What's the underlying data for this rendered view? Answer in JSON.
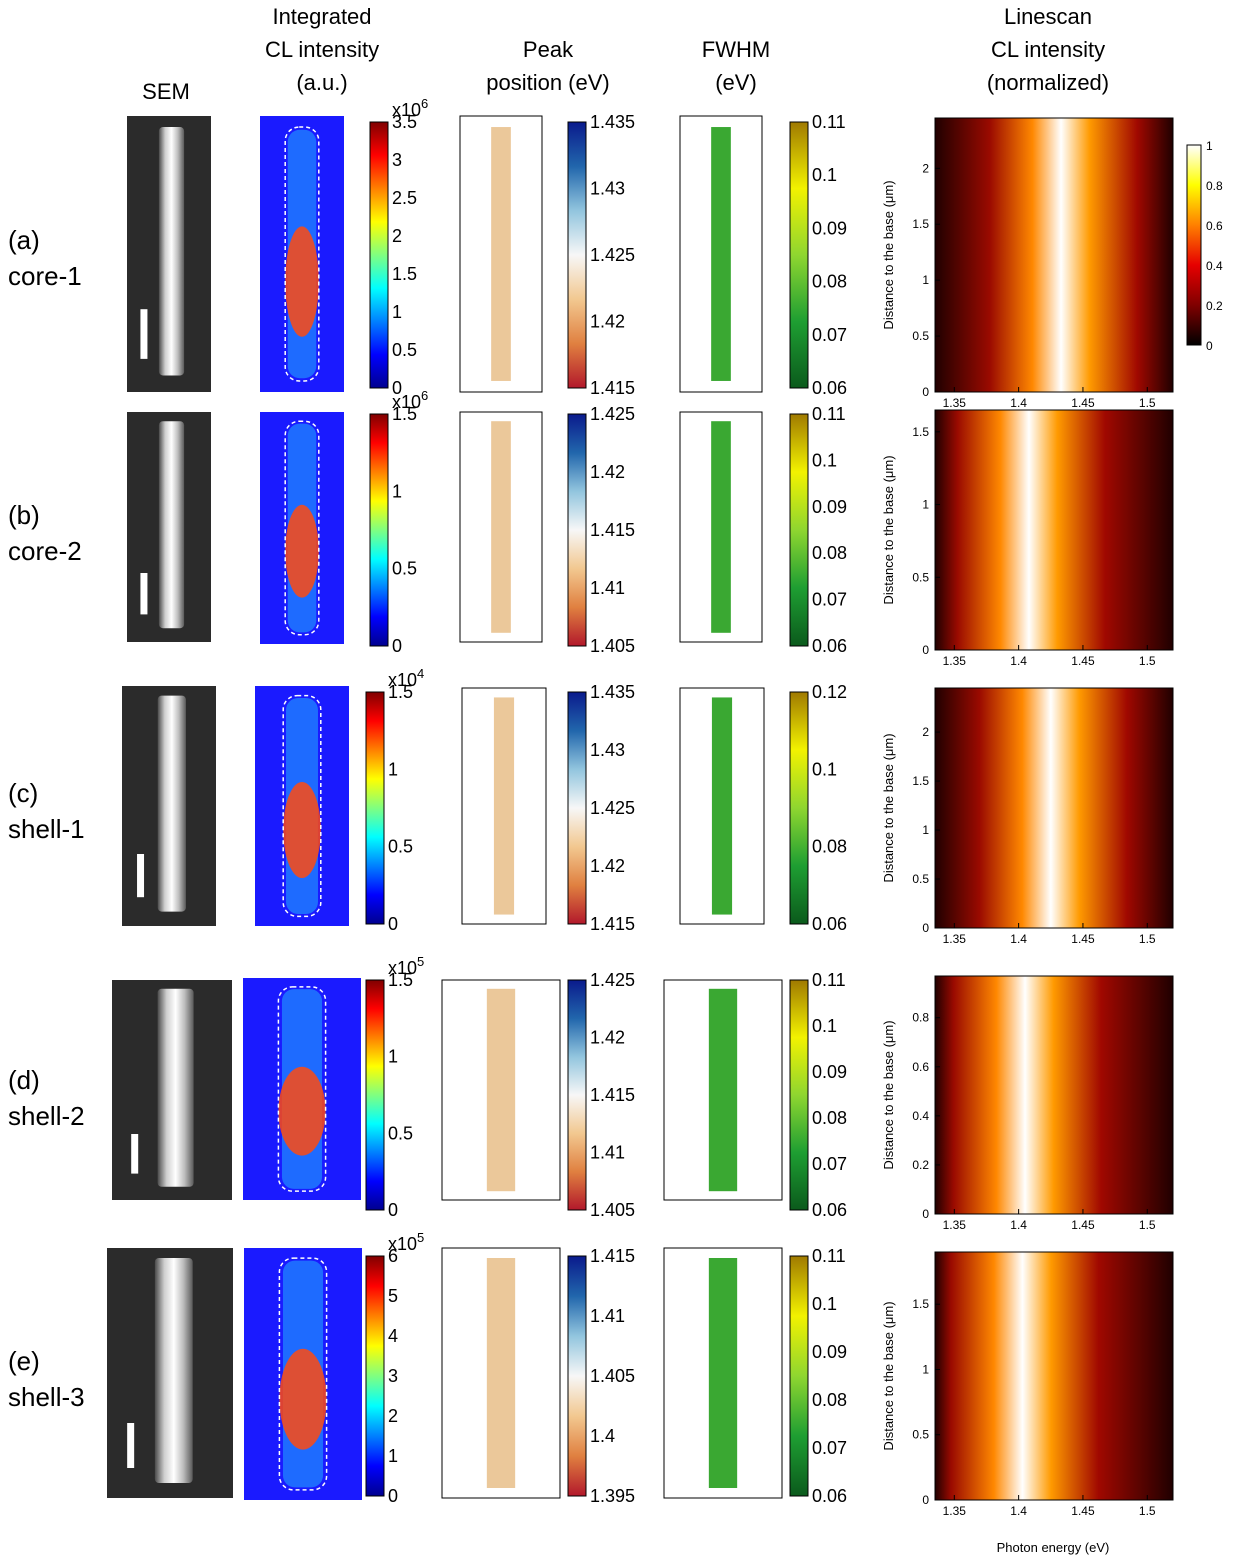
{
  "headers": {
    "sem": "SEM",
    "cl": [
      "Integrated",
      "CL intensity",
      "(a.u.)"
    ],
    "peak": [
      "Peak",
      "position (eV)"
    ],
    "fwhm": [
      "FWHM",
      "(eV)"
    ],
    "line": [
      "Linescan",
      "CL intensity",
      "(normalized)"
    ]
  },
  "linescan_axes": {
    "xlabel": "Photon energy (eV)",
    "ylabel": "Distance to the base (μm)",
    "xticks": [
      "1.35",
      "1.4",
      "1.45",
      "1.5"
    ],
    "xlim": [
      1.335,
      1.52
    ]
  },
  "linescan_colorbar": {
    "ticks": [
      "1",
      "0.8",
      "0.6",
      "0.4",
      "0.2",
      "0"
    ]
  },
  "colors": {
    "jet": [
      "#00008f",
      "#0000ff",
      "#0080ff",
      "#00ffff",
      "#80ff80",
      "#ffff00",
      "#ff8000",
      "#ff0000",
      "#800000"
    ],
    "hot": [
      "#000000",
      "#800000",
      "#e60000",
      "#ff8000",
      "#ffff00",
      "#ffffff"
    ],
    "diverging": [
      "#b2182b",
      "#e08040",
      "#f2c890",
      "#f7f7f7",
      "#92c5de",
      "#2166ac",
      "#0a1a8c"
    ],
    "greenyellow": [
      "#0b5a1c",
      "#1e9e32",
      "#8fd630",
      "#f2f200",
      "#a07a00"
    ]
  },
  "rows": [
    {
      "id": "a",
      "letter": "(a)",
      "name": "core-1",
      "cl_mult": "x10",
      "cl_exp": "6",
      "cl_ticks": [
        "3.5",
        "3",
        "2.5",
        "2",
        "1.5",
        "1",
        "0.5",
        "0"
      ],
      "peak_ticks": [
        "1.435",
        "1.43",
        "1.425",
        "1.42",
        "1.415"
      ],
      "fwhm_ticks": [
        "0.11",
        "0.1",
        "0.09",
        "0.08",
        "0.07",
        "0.06"
      ],
      "line_yticks": [
        "2",
        "1.5",
        "1",
        "0.5",
        "0"
      ],
      "line_ymax": 2.45,
      "peak_energy": 1.433
    },
    {
      "id": "b",
      "letter": "(b)",
      "name": "core-2",
      "cl_mult": "x10",
      "cl_exp": "6",
      "cl_ticks": [
        "1.5",
        "1",
        "0.5",
        "0"
      ],
      "peak_ticks": [
        "1.425",
        "1.42",
        "1.415",
        "1.41",
        "1.405"
      ],
      "fwhm_ticks": [
        "0.11",
        "0.1",
        "0.09",
        "0.08",
        "0.07",
        "0.06"
      ],
      "line_yticks": [
        "1.5",
        "1",
        "0.5",
        "0"
      ],
      "line_ymax": 1.65,
      "peak_energy": 1.408
    },
    {
      "id": "c",
      "letter": "(c)",
      "name": "shell-1",
      "cl_mult": "x10",
      "cl_exp": "4",
      "cl_ticks": [
        "1.5",
        "1",
        "0.5",
        "0"
      ],
      "peak_ticks": [
        "1.435",
        "1.43",
        "1.425",
        "1.42",
        "1.415"
      ],
      "fwhm_ticks": [
        "0.12",
        "0.1",
        "0.08",
        "0.06"
      ],
      "line_yticks": [
        "2",
        "1.5",
        "1",
        "0.5",
        "0"
      ],
      "line_ymax": 2.45,
      "peak_energy": 1.425
    },
    {
      "id": "d",
      "letter": "(d)",
      "name": "shell-2",
      "cl_mult": "x10",
      "cl_exp": "5",
      "cl_ticks": [
        "1.5",
        "1",
        "0.5",
        "0"
      ],
      "peak_ticks": [
        "1.425",
        "1.42",
        "1.415",
        "1.41",
        "1.405"
      ],
      "fwhm_ticks": [
        "0.11",
        "0.1",
        "0.09",
        "0.08",
        "0.07",
        "0.06"
      ],
      "line_yticks": [
        "0.8",
        "0.6",
        "0.4",
        "0.2",
        "0"
      ],
      "line_ymax": 0.97,
      "peak_energy": 1.405
    },
    {
      "id": "e",
      "letter": "(e)",
      "name": "shell-3",
      "cl_mult": "x10",
      "cl_exp": "5",
      "cl_ticks": [
        "6",
        "5",
        "4",
        "3",
        "2",
        "1",
        "0"
      ],
      "peak_ticks": [
        "1.415",
        "1.41",
        "1.405",
        "1.4",
        "1.395"
      ],
      "fwhm_ticks": [
        "0.11",
        "0.1",
        "0.09",
        "0.08",
        "0.07",
        "0.06"
      ],
      "line_yticks": [
        "1.5",
        "1",
        "0.5",
        "0"
      ],
      "line_ymax": 1.9,
      "peak_energy": 1.403
    }
  ]
}
